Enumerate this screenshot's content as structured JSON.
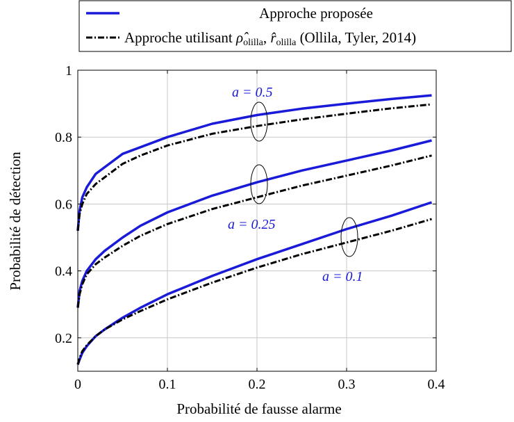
{
  "chart_data": {
    "type": "line",
    "xlabel": "Probabilité de fausse alarme",
    "ylabel": "Probabilité de détection",
    "xlim": [
      0,
      0.4
    ],
    "ylim": [
      0.1,
      1.0
    ],
    "xticks": [
      "0",
      "0.1",
      "0.2",
      "0.3",
      "0.4"
    ],
    "yticks": [
      "0.2",
      "0.4",
      "0.6",
      "0.8",
      "1"
    ],
    "grid": true,
    "legend_position": "top",
    "legend": {
      "proposed": "Approche proposée",
      "ollila_prefix": "Approche utilisant ",
      "ollila_rho": "ρ̂",
      "ollila_r": "r̂",
      "ollila_sub": "olilla",
      "ollila_suffix": " (Ollila, Tyler, 2014)"
    },
    "annotations": [
      {
        "text": "a = 0.5",
        "color": "#1a1ad9"
      },
      {
        "text": "a = 0.25",
        "color": "#1a1ad9"
      },
      {
        "text": "a = 0.1",
        "color": "#1a1ad9"
      }
    ],
    "colors": {
      "proposed": "#1a1ad9",
      "ollila": "#000000"
    },
    "series": [
      {
        "group": "a = 0.5",
        "style": "proposed",
        "x": [
          0,
          0.002,
          0.005,
          0.01,
          0.02,
          0.03,
          0.05,
          0.07,
          0.1,
          0.15,
          0.2,
          0.25,
          0.3,
          0.35,
          0.395
        ],
        "y": [
          0.52,
          0.58,
          0.62,
          0.65,
          0.69,
          0.71,
          0.75,
          0.77,
          0.8,
          0.84,
          0.866,
          0.885,
          0.9,
          0.914,
          0.925
        ]
      },
      {
        "group": "a = 0.5",
        "style": "ollila",
        "x": [
          0,
          0.002,
          0.005,
          0.01,
          0.02,
          0.03,
          0.05,
          0.07,
          0.1,
          0.15,
          0.2,
          0.25,
          0.3,
          0.35,
          0.395
        ],
        "y": [
          0.52,
          0.57,
          0.6,
          0.63,
          0.66,
          0.68,
          0.72,
          0.745,
          0.775,
          0.81,
          0.833,
          0.853,
          0.87,
          0.886,
          0.898
        ]
      },
      {
        "group": "a = 0.25",
        "style": "proposed",
        "x": [
          0,
          0.002,
          0.005,
          0.01,
          0.02,
          0.03,
          0.05,
          0.07,
          0.1,
          0.15,
          0.2,
          0.25,
          0.3,
          0.35,
          0.395
        ],
        "y": [
          0.29,
          0.34,
          0.37,
          0.4,
          0.435,
          0.46,
          0.5,
          0.535,
          0.575,
          0.625,
          0.665,
          0.7,
          0.73,
          0.76,
          0.79
        ]
      },
      {
        "group": "a = 0.25",
        "style": "ollila",
        "x": [
          0,
          0.002,
          0.005,
          0.01,
          0.02,
          0.03,
          0.05,
          0.07,
          0.1,
          0.15,
          0.2,
          0.25,
          0.3,
          0.35,
          0.395
        ],
        "y": [
          0.29,
          0.33,
          0.36,
          0.39,
          0.42,
          0.44,
          0.475,
          0.505,
          0.54,
          0.585,
          0.62,
          0.655,
          0.685,
          0.715,
          0.745
        ]
      },
      {
        "group": "a = 0.1",
        "style": "proposed",
        "x": [
          0,
          0.002,
          0.005,
          0.01,
          0.02,
          0.03,
          0.05,
          0.07,
          0.1,
          0.15,
          0.2,
          0.25,
          0.3,
          0.35,
          0.395
        ],
        "y": [
          0.12,
          0.135,
          0.155,
          0.175,
          0.205,
          0.225,
          0.26,
          0.29,
          0.33,
          0.385,
          0.435,
          0.48,
          0.525,
          0.565,
          0.605
        ]
      },
      {
        "group": "a = 0.1",
        "style": "ollila",
        "x": [
          0,
          0.002,
          0.005,
          0.01,
          0.02,
          0.03,
          0.05,
          0.07,
          0.1,
          0.15,
          0.2,
          0.25,
          0.3,
          0.35,
          0.395
        ],
        "y": [
          0.12,
          0.14,
          0.16,
          0.178,
          0.205,
          0.225,
          0.255,
          0.28,
          0.315,
          0.365,
          0.41,
          0.45,
          0.485,
          0.52,
          0.555
        ]
      }
    ]
  }
}
